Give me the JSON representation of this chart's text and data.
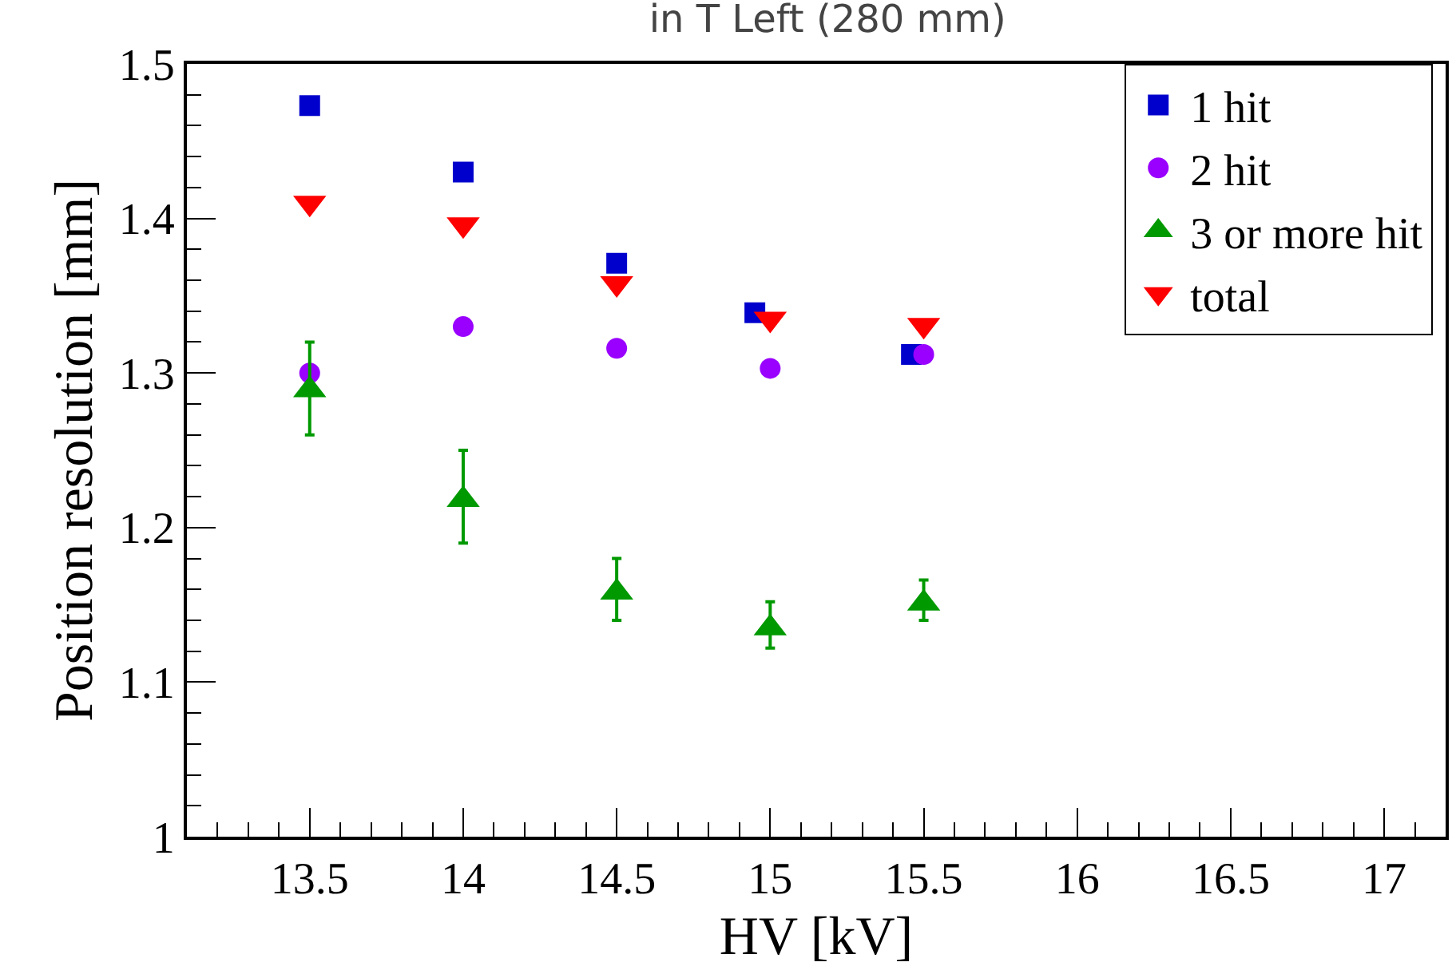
{
  "chart_data": {
    "type": "scatter",
    "title": "in T Left (280 mm)",
    "xlabel": "HV [kV]",
    "ylabel": "Position resolution [mm]",
    "xlim": [
      13.1,
      17.2
    ],
    "xticks": [
      13.5,
      14,
      14.5,
      15,
      15.5,
      16,
      16.5,
      17
    ],
    "ylim": [
      1,
      1.5
    ],
    "yticks": [
      1,
      1.1,
      1.2,
      1.3,
      1.4,
      1.5
    ],
    "legend": "top right",
    "series": [
      {
        "name": "1 hit",
        "color": "#0000cc",
        "marker": "square",
        "x": [
          13.5,
          14,
          14.5,
          14.95,
          15.46
        ],
        "values": [
          1.473,
          1.43,
          1.371,
          1.339,
          1.312
        ]
      },
      {
        "name": "2 hit",
        "color": "#9900ff",
        "marker": "circle",
        "x": [
          13.5,
          14,
          14.5,
          15,
          15.5
        ],
        "values": [
          1.3,
          1.33,
          1.316,
          1.303,
          1.312
        ]
      },
      {
        "name": "3 or more hit",
        "color": "#009900",
        "marker": "triangle",
        "x": [
          13.5,
          14,
          14.5,
          15,
          15.5
        ],
        "values": [
          1.289,
          1.218,
          1.158,
          1.135,
          1.151
        ],
        "errors": [
          [
            1.26,
            1.32
          ],
          [
            1.19,
            1.25
          ],
          [
            1.14,
            1.18
          ],
          [
            1.122,
            1.152
          ],
          [
            1.14,
            1.166
          ]
        ]
      },
      {
        "name": "total",
        "color": "#ff0000",
        "marker": "triangle-down",
        "x": [
          13.5,
          14,
          14.5,
          15,
          15.5
        ],
        "values": [
          1.41,
          1.396,
          1.358,
          1.335,
          1.331
        ]
      }
    ]
  }
}
